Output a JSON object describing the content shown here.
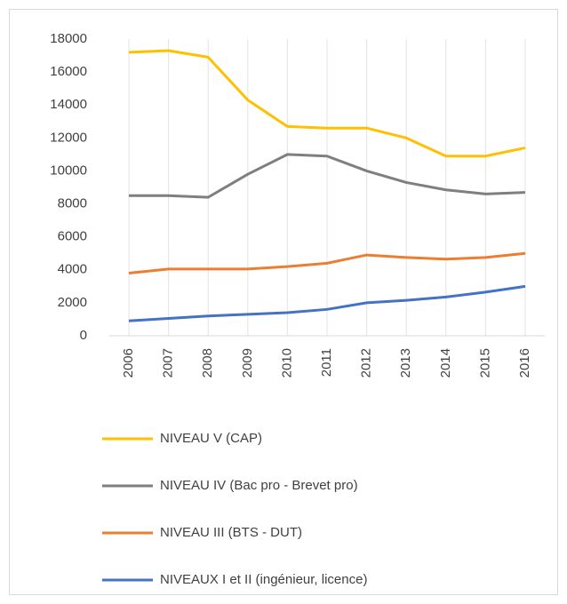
{
  "chart_data": {
    "type": "line",
    "categories": [
      "2006",
      "2007",
      "2008",
      "2009",
      "2010",
      "2011",
      "2012",
      "2013",
      "2014",
      "2015",
      "2016"
    ],
    "series": [
      {
        "name": "NIVEAU V (CAP)",
        "color": "#ffc000",
        "values": [
          17200,
          17300,
          16900,
          14300,
          12700,
          12600,
          12600,
          12000,
          10900,
          10900,
          11400
        ]
      },
      {
        "name": "NIVEAU IV (Bac pro - Brevet pro)",
        "color": "#7f7f7f",
        "values": [
          8500,
          8500,
          8400,
          9800,
          11000,
          10900,
          10000,
          9300,
          8850,
          8600,
          8700
        ]
      },
      {
        "name": "NIVEAU III (BTS - DUT)",
        "color": "#ed7d31",
        "values": [
          3800,
          4050,
          4050,
          4050,
          4200,
          4400,
          4900,
          4750,
          4650,
          4750,
          5000
        ]
      },
      {
        "name": "NIVEAUX I et II (ingénieur, licence)",
        "color": "#4472c4",
        "values": [
          900,
          1050,
          1200,
          1300,
          1400,
          1600,
          2000,
          2150,
          2350,
          2650,
          3000
        ]
      }
    ],
    "ylim": [
      0,
      18000
    ],
    "yticks": [
      0,
      2000,
      4000,
      6000,
      8000,
      10000,
      12000,
      14000,
      16000,
      18000
    ],
    "grid": true,
    "legend": "bottom"
  }
}
